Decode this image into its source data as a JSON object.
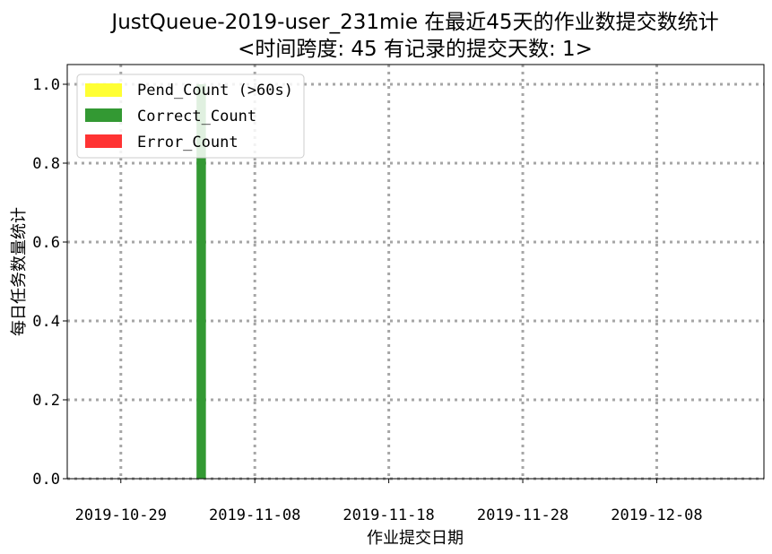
{
  "chart_data": {
    "type": "bar",
    "stacked": true,
    "title": "JustQueue-2019-user_231mie 在最近45天的作业数提交数统计",
    "subtitle": "<时间跨度: 45  有记录的提交天数: 1>",
    "xlabel": "作业提交日期",
    "ylabel": "每日任务数量统计",
    "x_range": [
      "2019-10-25",
      "2019-12-16"
    ],
    "ylim": [
      0,
      1.05
    ],
    "x_ticks": [
      "2019-10-29",
      "2019-11-08",
      "2019-11-18",
      "2019-11-28",
      "2019-12-08"
    ],
    "y_ticks": [
      0.0,
      0.2,
      0.4,
      0.6,
      0.8,
      1.0
    ],
    "y_tick_labels": [
      "0.0",
      "0.2",
      "0.4",
      "0.6",
      "0.8",
      "1.0"
    ],
    "grid": true,
    "legend_position": "top-left",
    "series": [
      {
        "name": "Pend_Count (>60s)",
        "color": "#ffff33",
        "points": [
          {
            "x": "2019-11-04",
            "y": 0
          }
        ]
      },
      {
        "name": "Correct_Count",
        "color": "#339933",
        "points": [
          {
            "x": "2019-11-04",
            "y": 1
          }
        ]
      },
      {
        "name": "Error_Count",
        "color": "#ff3333",
        "points": [
          {
            "x": "2019-11-04",
            "y": 0
          }
        ]
      }
    ]
  }
}
